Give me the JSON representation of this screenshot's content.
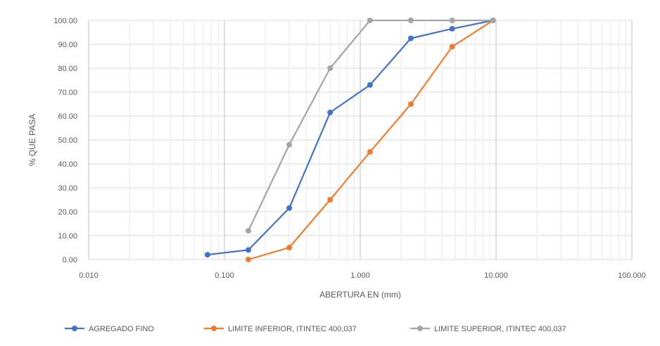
{
  "chart_data": {
    "type": "line",
    "x_scale": "log",
    "grid": true,
    "xlabel": "ABERTURA  EN (mm)",
    "ylabel": "% QUE PASA",
    "xlim": [
      0.01,
      100
    ],
    "ylim": [
      0,
      100
    ],
    "x_ticks": [
      "0.010",
      "0.100",
      "1.000",
      "10.000",
      "100.000"
    ],
    "y_ticks": [
      "0.00",
      "10.00",
      "20.00",
      "30.00",
      "40.00",
      "50.00",
      "60.00",
      "70.00",
      "80.00",
      "90.00",
      "100.00"
    ],
    "legend_position": "bottom",
    "series": [
      {
        "name": "AGREGADO FINO",
        "color": "#4472c4",
        "points": [
          [
            0.075,
            2.0
          ],
          [
            0.15,
            4.0
          ],
          [
            0.3,
            21.5
          ],
          [
            0.6,
            61.5
          ],
          [
            1.18,
            73.0
          ],
          [
            2.36,
            92.5
          ],
          [
            4.75,
            96.5
          ],
          [
            9.5,
            100.0
          ]
        ]
      },
      {
        "name": "LIMITE INFERIOR, ITINTEC 400,037",
        "color": "#ed7d31",
        "points": [
          [
            0.15,
            0.0
          ],
          [
            0.3,
            5.0
          ],
          [
            0.6,
            25.0
          ],
          [
            1.18,
            45.0
          ],
          [
            2.36,
            65.0
          ],
          [
            4.75,
            89.0
          ],
          [
            9.5,
            100.0
          ]
        ]
      },
      {
        "name": "LIMITE SUPERIOR, ITINTEC 400,037",
        "color": "#a5a5a5",
        "points": [
          [
            0.15,
            12.0
          ],
          [
            0.3,
            48.0
          ],
          [
            0.6,
            80.0
          ],
          [
            1.18,
            100.0
          ],
          [
            2.36,
            100.0
          ],
          [
            4.75,
            100.0
          ],
          [
            9.5,
            100.0
          ]
        ]
      }
    ]
  }
}
